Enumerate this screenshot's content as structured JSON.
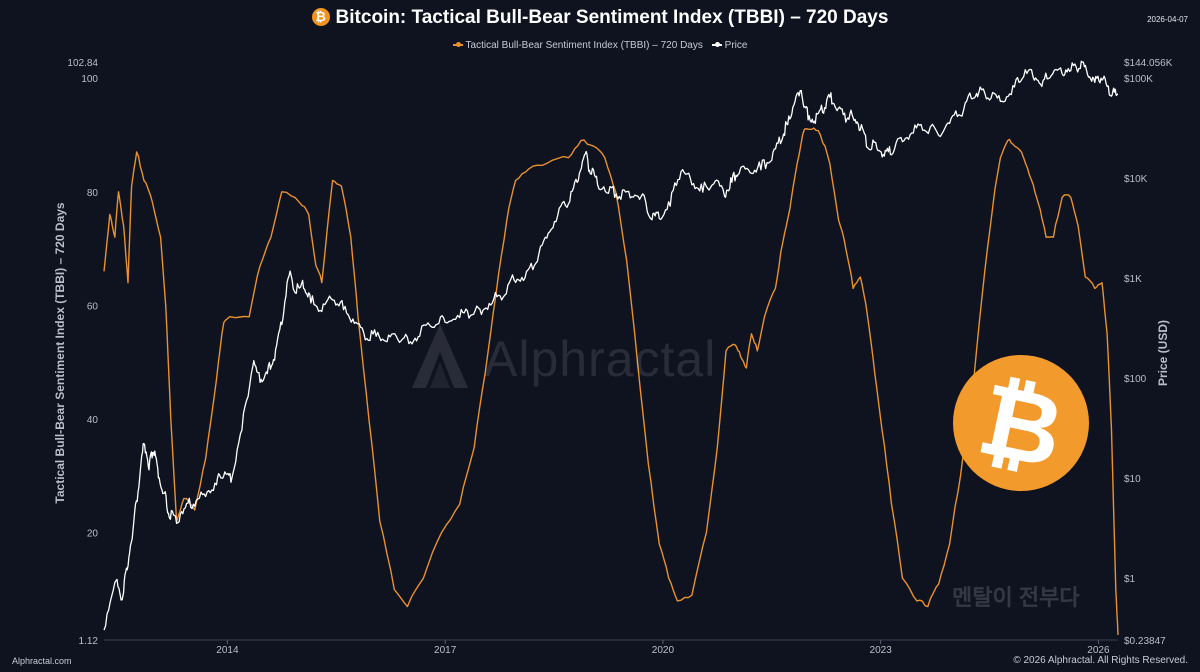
{
  "header": {
    "title": "Bitcoin: Tactical Bull-Bear Sentiment Index (TBBI) – 720 Days",
    "title_icon": "bitcoin-icon",
    "title_icon_glyph": "₿",
    "date": "2026-04-07"
  },
  "legend": {
    "items": [
      {
        "label": "Tactical Bull-Bear Sentiment Index (TBBI) – 720 Days",
        "color": "#e8912f"
      },
      {
        "label": "Price",
        "color": "#ffffff"
      }
    ]
  },
  "footer": {
    "left": "Alphractal.com",
    "right": "© 2026 Alphractal. All Rights Reserved."
  },
  "watermark": {
    "text": "Alphractal",
    "korean": "멘탈이 전부다"
  },
  "badge": {
    "glyph": "₿",
    "color": "#f39a2c"
  },
  "chart_data": {
    "type": "line",
    "title": "Bitcoin: Tactical Bull-Bear Sentiment Index (TBBI) – 720 Days",
    "x_ticks": [
      "2014",
      "2017",
      "2020",
      "2023",
      "2026"
    ],
    "x_range": [
      2012.3,
      2026.27
    ],
    "left_axis": {
      "label": "Tactical Bull-Bear Sentiment Index (TBBI) – 720 Days",
      "range": [
        1.12,
        102.84
      ],
      "ticks": [
        "1.12",
        "20",
        "40",
        "60",
        "80",
        "100",
        "102.84"
      ],
      "tick_values": [
        1.12,
        20,
        40,
        60,
        80,
        100,
        102.84
      ]
    },
    "right_axis": {
      "label": "Price (USD)",
      "scale": "log",
      "range": [
        0.23847,
        144056
      ],
      "ticks": [
        "$0.23847",
        "$1",
        "$10",
        "$100",
        "$1K",
        "$10K",
        "$100K",
        "$144.056K"
      ],
      "tick_values": [
        0.23847,
        1,
        10,
        100,
        1000,
        10000,
        100000,
        144056
      ]
    },
    "series": [
      {
        "name": "Tactical Bull-Bear Sentiment Index (TBBI) – 720 Days",
        "axis": "left",
        "color": "#e8912f",
        "points": [
          [
            2012.3,
            66
          ],
          [
            2012.38,
            76
          ],
          [
            2012.45,
            72
          ],
          [
            2012.5,
            80
          ],
          [
            2012.57,
            74
          ],
          [
            2012.63,
            64
          ],
          [
            2012.68,
            81
          ],
          [
            2012.75,
            87
          ],
          [
            2012.85,
            82
          ],
          [
            2012.97,
            78
          ],
          [
            2013.08,
            72
          ],
          [
            2013.15,
            60
          ],
          [
            2013.22,
            40
          ],
          [
            2013.3,
            22
          ],
          [
            2013.4,
            26
          ],
          [
            2013.55,
            24
          ],
          [
            2013.7,
            33
          ],
          [
            2013.85,
            47
          ],
          [
            2013.95,
            57
          ],
          [
            2014.05,
            58
          ],
          [
            2014.3,
            58
          ],
          [
            2014.45,
            67
          ],
          [
            2014.6,
            72
          ],
          [
            2014.75,
            80
          ],
          [
            2015.0,
            78
          ],
          [
            2015.12,
            76
          ],
          [
            2015.22,
            67
          ],
          [
            2015.3,
            64
          ],
          [
            2015.45,
            82
          ],
          [
            2015.57,
            81
          ],
          [
            2015.7,
            72
          ],
          [
            2015.8,
            58
          ],
          [
            2015.95,
            40
          ],
          [
            2016.1,
            22
          ],
          [
            2016.3,
            10
          ],
          [
            2016.48,
            7
          ],
          [
            2016.7,
            12
          ],
          [
            2016.95,
            20
          ],
          [
            2017.2,
            25
          ],
          [
            2017.4,
            35
          ],
          [
            2017.55,
            48
          ],
          [
            2017.7,
            62
          ],
          [
            2017.85,
            75
          ],
          [
            2017.97,
            82
          ],
          [
            2018.15,
            84
          ],
          [
            2018.4,
            85
          ],
          [
            2018.7,
            86
          ],
          [
            2018.87,
            89
          ],
          [
            2019.05,
            88
          ],
          [
            2019.2,
            86
          ],
          [
            2019.35,
            80
          ],
          [
            2019.5,
            68
          ],
          [
            2019.65,
            50
          ],
          [
            2019.8,
            32
          ],
          [
            2019.95,
            18
          ],
          [
            2020.08,
            12
          ],
          [
            2020.2,
            8
          ],
          [
            2020.4,
            9
          ],
          [
            2020.6,
            20
          ],
          [
            2020.75,
            35
          ],
          [
            2020.87,
            52
          ],
          [
            2021.0,
            53
          ],
          [
            2021.07,
            51
          ],
          [
            2021.15,
            49
          ],
          [
            2021.22,
            55
          ],
          [
            2021.3,
            52
          ],
          [
            2021.4,
            58
          ],
          [
            2021.55,
            63
          ],
          [
            2021.65,
            71
          ],
          [
            2021.75,
            77
          ],
          [
            2021.85,
            85
          ],
          [
            2021.95,
            91
          ],
          [
            2022.05,
            91
          ],
          [
            2022.17,
            90
          ],
          [
            2022.3,
            85
          ],
          [
            2022.42,
            75
          ],
          [
            2022.52,
            70
          ],
          [
            2022.62,
            63
          ],
          [
            2022.72,
            65
          ],
          [
            2022.82,
            58
          ],
          [
            2022.92,
            48
          ],
          [
            2023.02,
            38
          ],
          [
            2023.15,
            25
          ],
          [
            2023.3,
            12
          ],
          [
            2023.5,
            8
          ],
          [
            2023.65,
            7
          ],
          [
            2023.8,
            11
          ],
          [
            2023.95,
            18
          ],
          [
            2024.1,
            30
          ],
          [
            2024.25,
            43
          ],
          [
            2024.4,
            62
          ],
          [
            2024.55,
            78
          ],
          [
            2024.65,
            86
          ],
          [
            2024.75,
            89
          ],
          [
            2024.85,
            88
          ],
          [
            2024.97,
            86
          ],
          [
            2025.08,
            82
          ],
          [
            2025.17,
            78
          ],
          [
            2025.28,
            72
          ],
          [
            2025.38,
            72
          ],
          [
            2025.5,
            79
          ],
          [
            2025.62,
            79
          ],
          [
            2025.72,
            74
          ],
          [
            2025.82,
            65
          ],
          [
            2025.95,
            63
          ],
          [
            2026.05,
            64
          ],
          [
            2026.12,
            55
          ],
          [
            2026.18,
            38
          ],
          [
            2026.24,
            10
          ],
          [
            2026.27,
            2
          ]
        ]
      },
      {
        "name": "Price",
        "axis": "right",
        "color": "#ffffff",
        "points": [
          [
            2012.3,
            0.3
          ],
          [
            2012.45,
            0.9
          ],
          [
            2012.55,
            0.6
          ],
          [
            2012.62,
            1.2
          ],
          [
            2012.7,
            3
          ],
          [
            2012.78,
            8
          ],
          [
            2012.85,
            22
          ],
          [
            2012.92,
            12
          ],
          [
            2012.98,
            18
          ],
          [
            2013.05,
            10
          ],
          [
            2013.12,
            7
          ],
          [
            2013.2,
            4
          ],
          [
            2013.3,
            3.5
          ],
          [
            2013.42,
            5
          ],
          [
            2013.55,
            5.2
          ],
          [
            2013.7,
            6.5
          ],
          [
            2013.85,
            8.5
          ],
          [
            2013.95,
            10.5
          ],
          [
            2014.05,
            9
          ],
          [
            2014.2,
            30
          ],
          [
            2014.35,
            130
          ],
          [
            2014.45,
            90
          ],
          [
            2014.55,
            110
          ],
          [
            2014.65,
            150
          ],
          [
            2014.75,
            340
          ],
          [
            2014.85,
            1050
          ],
          [
            2014.95,
            700
          ],
          [
            2015.05,
            780
          ],
          [
            2015.15,
            560
          ],
          [
            2015.3,
            460
          ],
          [
            2015.45,
            600
          ],
          [
            2015.6,
            480
          ],
          [
            2015.75,
            350
          ],
          [
            2015.9,
            240
          ],
          [
            2016.05,
            260
          ],
          [
            2016.2,
            230
          ],
          [
            2016.35,
            240
          ],
          [
            2016.5,
            220
          ],
          [
            2016.65,
            260
          ],
          [
            2016.85,
            320
          ],
          [
            2017.0,
            360
          ],
          [
            2017.2,
            400
          ],
          [
            2017.35,
            420
          ],
          [
            2017.5,
            430
          ],
          [
            2017.65,
            560
          ],
          [
            2017.8,
            640
          ],
          [
            2017.95,
            950
          ],
          [
            2018.1,
            1000
          ],
          [
            2018.25,
            1400
          ],
          [
            2018.4,
            2500
          ],
          [
            2018.55,
            4200
          ],
          [
            2018.7,
            5500
          ],
          [
            2018.82,
            9000
          ],
          [
            2018.92,
            17000
          ],
          [
            2019.0,
            11000
          ],
          [
            2019.1,
            8500
          ],
          [
            2019.25,
            7000
          ],
          [
            2019.4,
            6500
          ],
          [
            2019.55,
            6300
          ],
          [
            2019.7,
            6500
          ],
          [
            2019.85,
            3800
          ],
          [
            2019.95,
            3900
          ],
          [
            2020.1,
            5200
          ],
          [
            2020.25,
            11500
          ],
          [
            2020.4,
            8500
          ],
          [
            2020.55,
            7200
          ],
          [
            2020.7,
            8700
          ],
          [
            2020.85,
            6500
          ],
          [
            2020.95,
            9000
          ],
          [
            2021.05,
            11000
          ],
          [
            2021.2,
            11300
          ],
          [
            2021.35,
            12000
          ],
          [
            2021.5,
            15000
          ],
          [
            2021.62,
            22000
          ],
          [
            2021.72,
            34000
          ],
          [
            2021.82,
            58000
          ],
          [
            2021.92,
            63000
          ],
          [
            2022.0,
            38000
          ],
          [
            2022.1,
            35000
          ],
          [
            2022.2,
            45000
          ],
          [
            2022.3,
            64000
          ],
          [
            2022.4,
            47000
          ],
          [
            2022.52,
            36000
          ],
          [
            2022.62,
            40000
          ],
          [
            2022.72,
            30000
          ],
          [
            2022.82,
            20000
          ],
          [
            2022.95,
            19500
          ],
          [
            2023.05,
            16500
          ],
          [
            2023.15,
            17000
          ],
          [
            2023.3,
            23000
          ],
          [
            2023.45,
            28000
          ],
          [
            2023.6,
            30000
          ],
          [
            2023.8,
            26500
          ],
          [
            2023.95,
            35000
          ],
          [
            2024.1,
            42000
          ],
          [
            2024.25,
            62000
          ],
          [
            2024.35,
            70000
          ],
          [
            2024.5,
            60000
          ],
          [
            2024.65,
            58000
          ],
          [
            2024.8,
            68000
          ],
          [
            2024.95,
            98000
          ],
          [
            2025.1,
            102000
          ],
          [
            2025.22,
            82000
          ],
          [
            2025.35,
            105000
          ],
          [
            2025.5,
            110000
          ],
          [
            2025.62,
            118000
          ],
          [
            2025.75,
            124000
          ],
          [
            2025.85,
            108000
          ],
          [
            2025.95,
            90000
          ],
          [
            2026.05,
            95000
          ],
          [
            2026.15,
            68000
          ],
          [
            2026.22,
            72000
          ],
          [
            2026.27,
            69000
          ]
        ]
      }
    ]
  }
}
